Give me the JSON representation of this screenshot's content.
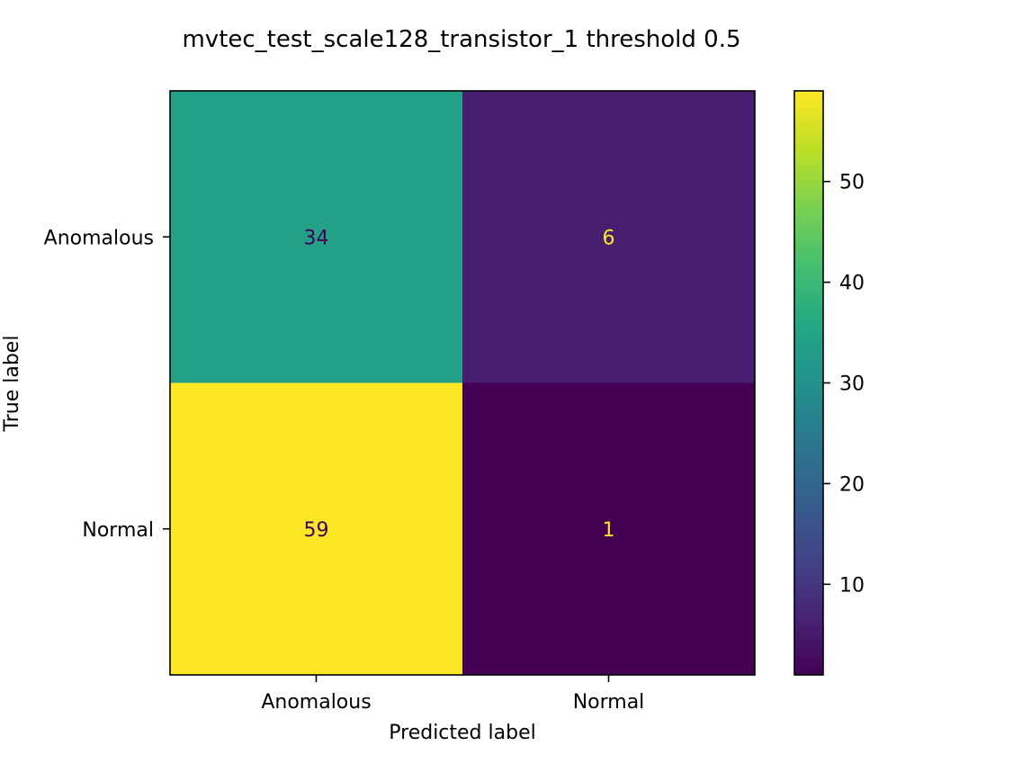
{
  "chart_data": {
    "type": "heatmap",
    "title": "mvtec_test_scale128_transistor_1 threshold 0.5",
    "xlabel": "Predicted label",
    "ylabel": "True label",
    "x_categories": [
      "Anomalous",
      "Normal"
    ],
    "y_categories": [
      "Anomalous",
      "Normal"
    ],
    "values": [
      [
        34,
        6
      ],
      [
        59,
        1
      ]
    ],
    "colormap": "viridis",
    "colorbar": {
      "range": [
        1,
        59
      ],
      "ticks": [
        10,
        20,
        30,
        40,
        50
      ],
      "tick_labels": [
        "10",
        "20",
        "30",
        "40",
        "50"
      ]
    },
    "text_colors": {
      "dark": "#440154",
      "light": "#fde725"
    },
    "grid": false
  }
}
